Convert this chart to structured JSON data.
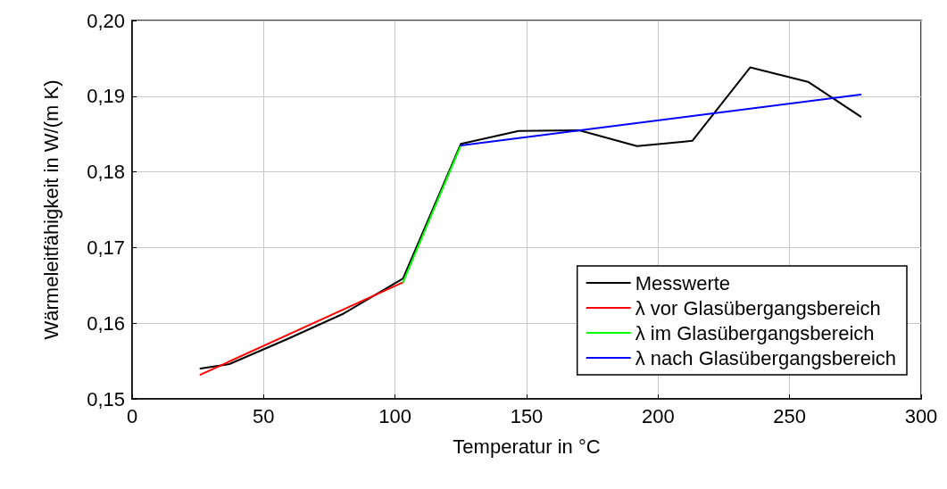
{
  "chart_data": {
    "type": "line",
    "xlabel": "Temperatur in °C",
    "ylabel": "Wärmeleitfähigkeit in W/(m K)",
    "xlim": [
      0,
      300
    ],
    "xticks": [
      0,
      50,
      100,
      150,
      200,
      250,
      300
    ],
    "ylim": [
      0.15,
      0.2
    ],
    "yticks": [
      {
        "value": 0.15,
        "label": "0,15"
      },
      {
        "value": 0.16,
        "label": "0,16"
      },
      {
        "value": 0.17,
        "label": "0,17"
      },
      {
        "value": 0.18,
        "label": "0,18"
      },
      {
        "value": 0.19,
        "label": "0,19"
      },
      {
        "value": 0.2,
        "label": "0,20"
      }
    ],
    "grid": true,
    "legend": "bottom right",
    "marker": "none",
    "line_style": "solid",
    "series": [
      {
        "name": "Messwerte",
        "color": "#000000",
        "x": [
          26,
          37,
          59,
          80,
          103,
          125,
          147,
          170,
          192,
          213,
          235,
          257,
          277
        ],
        "values": [
          0.154,
          0.1546,
          0.1579,
          0.1612,
          0.1659,
          0.1837,
          0.1854,
          0.1855,
          0.1834,
          0.1841,
          0.1938,
          0.1919,
          0.1873
        ]
      },
      {
        "name": "λ vor Glasübergangsbereich",
        "color": "#ff0000",
        "x": [
          26,
          103
        ],
        "values": [
          0.1532,
          0.1654
        ]
      },
      {
        "name": "λ im Glasübergangsbereich",
        "color": "#00ff00",
        "x": [
          103,
          125
        ],
        "values": [
          0.1654,
          0.1835
        ]
      },
      {
        "name": "λ nach Glasübergangsbereich",
        "color": "#0000ff",
        "x": [
          125,
          277
        ],
        "values": [
          0.1835,
          0.1902
        ]
      }
    ]
  }
}
